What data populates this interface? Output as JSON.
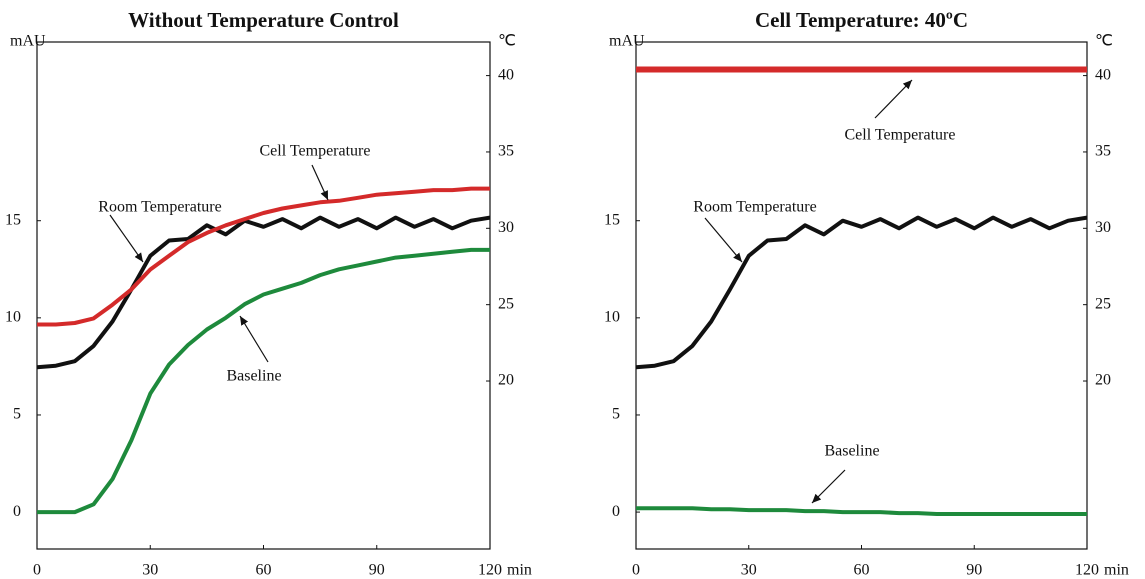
{
  "chart_data": [
    {
      "type": "line",
      "title": "Without Temperature Control",
      "y_label": "mAU",
      "y2_label": "℃",
      "x_label": "min",
      "x": [
        0,
        5,
        10,
        15,
        20,
        25,
        30,
        35,
        40,
        45,
        50,
        55,
        60,
        65,
        70,
        75,
        80,
        85,
        90,
        95,
        100,
        105,
        110,
        115,
        120
      ],
      "xlim": [
        0,
        120
      ],
      "xticks": [
        0,
        30,
        60,
        90,
        120
      ],
      "ylim": [
        -1.9,
        24.2
      ],
      "yticks": [
        0,
        5,
        10,
        15
      ],
      "y2lim": [
        9,
        42.2
      ],
      "y2ticks": [
        20,
        25,
        30,
        35,
        40
      ],
      "series": [
        {
          "name": "Room Temperature",
          "color": "#111111",
          "axis": "y2",
          "values": [
            20.9,
            21.0,
            21.3,
            22.3,
            23.9,
            26.0,
            28.2,
            29.2,
            29.3,
            30.2,
            29.6,
            30.5,
            30.1,
            30.6,
            30.0,
            30.7,
            30.1,
            30.6,
            30.0,
            30.7,
            30.1,
            30.6,
            30.0,
            30.5,
            30.7
          ]
        },
        {
          "name": "Cell Temperature",
          "color": "#d42a2a",
          "axis": "y2",
          "values": [
            23.7,
            23.7,
            23.8,
            24.1,
            25.0,
            26.0,
            27.3,
            28.2,
            29.1,
            29.7,
            30.2,
            30.6,
            31.0,
            31.3,
            31.5,
            31.7,
            31.8,
            32.0,
            32.2,
            32.3,
            32.4,
            32.5,
            32.5,
            32.6,
            32.6
          ]
        },
        {
          "name": "Baseline",
          "color": "#1e8a3c",
          "values": [
            0,
            0,
            0,
            0.4,
            1.7,
            3.7,
            6.1,
            7.6,
            8.6,
            9.4,
            10.0,
            10.7,
            11.2,
            11.5,
            11.8,
            12.2,
            12.5,
            12.7,
            12.9,
            13.1,
            13.2,
            13.3,
            13.4,
            13.5,
            13.5
          ]
        }
      ]
    },
    {
      "type": "line",
      "title": "Cell Temperature: 40ºC",
      "y_label": "mAU",
      "y2_label": "℃",
      "x_label": "min",
      "x": [
        0,
        5,
        10,
        15,
        20,
        25,
        30,
        35,
        40,
        45,
        50,
        55,
        60,
        65,
        70,
        75,
        80,
        85,
        90,
        95,
        100,
        105,
        110,
        115,
        120
      ],
      "xlim": [
        0,
        120
      ],
      "xticks": [
        0,
        30,
        60,
        90,
        120
      ],
      "ylim": [
        -1.9,
        24.2
      ],
      "yticks": [
        0,
        5,
        10,
        15
      ],
      "y2lim": [
        9,
        42.2
      ],
      "y2ticks": [
        20,
        25,
        30,
        35,
        40
      ],
      "series": [
        {
          "name": "Room Temperature",
          "color": "#111111",
          "axis": "y2",
          "values": [
            20.9,
            21.0,
            21.3,
            22.3,
            23.9,
            26.0,
            28.2,
            29.2,
            29.3,
            30.2,
            29.6,
            30.5,
            30.1,
            30.6,
            30.0,
            30.7,
            30.1,
            30.6,
            30.0,
            30.7,
            30.1,
            30.6,
            30.0,
            30.5,
            30.7
          ]
        },
        {
          "name": "Cell Temperature",
          "color": "#d42a2a",
          "axis": "y2",
          "values": [
            40.4,
            40.4,
            40.4,
            40.4,
            40.4,
            40.4,
            40.4,
            40.4,
            40.4,
            40.4,
            40.4,
            40.4,
            40.4,
            40.4,
            40.4,
            40.4,
            40.4,
            40.4,
            40.4,
            40.4,
            40.4,
            40.4,
            40.4,
            40.4,
            40.4
          ]
        },
        {
          "name": "Baseline",
          "color": "#1e8a3c",
          "values": [
            0.2,
            0.2,
            0.2,
            0.2,
            0.15,
            0.15,
            0.1,
            0.1,
            0.1,
            0.05,
            0.05,
            0,
            0,
            0,
            -0.05,
            -0.05,
            -0.1,
            -0.1,
            -0.1,
            -0.1,
            -0.1,
            -0.1,
            -0.1,
            -0.1,
            -0.1
          ]
        }
      ]
    }
  ]
}
